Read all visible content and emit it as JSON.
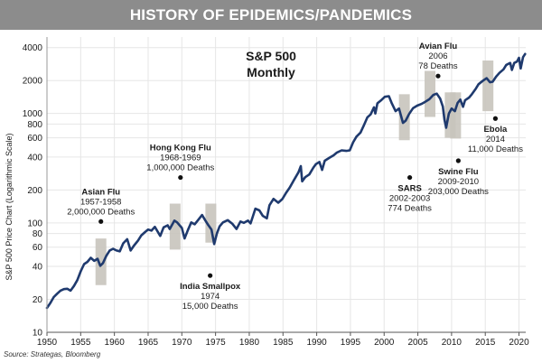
{
  "title": "HISTORY OF EPIDEMICS/PANDEMICS",
  "source": "Source: Strategas, Bloomberg",
  "colors": {
    "title_bg": "#8c8c8c",
    "line": "#1f3a6e",
    "bar": "#c8c4bc",
    "grid": "#e6e6e6"
  },
  "chart_data": {
    "type": "line",
    "title": "S&P 500",
    "subtitle": "Monthly",
    "ylabel": "S&P 500 Price Chart (Logarithmic Scale)",
    "xlabel": "",
    "log_y": true,
    "xlim": [
      1950,
      2021
    ],
    "ylim": [
      10,
      5000
    ],
    "grid": true,
    "x_ticks": [
      "1950",
      "1955",
      "1960",
      "1965",
      "1970",
      "1975",
      "1980",
      "1985",
      "1990",
      "1995",
      "2000",
      "2005",
      "2010",
      "2015",
      "2020"
    ],
    "y_ticks": [
      "10",
      "20",
      "40",
      "60",
      "80",
      "100",
      "200",
      "400",
      "600",
      "800",
      "1000",
      "2000",
      "4000"
    ],
    "series": [
      {
        "name": "",
        "points": [
          [
            1950.0,
            16.7
          ],
          [
            1950.5,
            18.5
          ],
          [
            1951.0,
            21.0
          ],
          [
            1951.5,
            22.5
          ],
          [
            1952.0,
            24.0
          ],
          [
            1952.5,
            24.8
          ],
          [
            1953.0,
            25.0
          ],
          [
            1953.5,
            24.0
          ],
          [
            1954.0,
            26.5
          ],
          [
            1954.5,
            30.0
          ],
          [
            1955.0,
            36.0
          ],
          [
            1955.5,
            42.0
          ],
          [
            1956.0,
            44.0
          ],
          [
            1956.5,
            48.0
          ],
          [
            1957.0,
            45.0
          ],
          [
            1957.5,
            47.0
          ],
          [
            1957.9,
            40.5
          ],
          [
            1958.3,
            43.0
          ],
          [
            1958.8,
            50.0
          ],
          [
            1959.3,
            56.0
          ],
          [
            1959.8,
            58.0
          ],
          [
            1960.3,
            56.0
          ],
          [
            1960.8,
            55.0
          ],
          [
            1961.3,
            65.0
          ],
          [
            1961.9,
            71.0
          ],
          [
            1962.4,
            56.0
          ],
          [
            1962.9,
            62.0
          ],
          [
            1963.5,
            69.0
          ],
          [
            1964.0,
            77.0
          ],
          [
            1964.6,
            83.0
          ],
          [
            1965.0,
            87.0
          ],
          [
            1965.5,
            85.0
          ],
          [
            1966.0,
            92.0
          ],
          [
            1966.8,
            76.0
          ],
          [
            1967.3,
            91.0
          ],
          [
            1967.9,
            95.0
          ],
          [
            1968.2,
            88.0
          ],
          [
            1968.9,
            105.0
          ],
          [
            1969.3,
            101.0
          ],
          [
            1970.0,
            90.0
          ],
          [
            1970.4,
            72.0
          ],
          [
            1970.9,
            86.0
          ],
          [
            1971.4,
            101.0
          ],
          [
            1971.9,
            97.0
          ],
          [
            1972.5,
            108.0
          ],
          [
            1973.0,
            118.0
          ],
          [
            1973.5,
            105.0
          ],
          [
            1973.9,
            96.0
          ],
          [
            1974.4,
            87.0
          ],
          [
            1974.8,
            64.0
          ],
          [
            1975.2,
            80.0
          ],
          [
            1975.6,
            93.0
          ],
          [
            1976.1,
            101.0
          ],
          [
            1976.8,
            106.0
          ],
          [
            1977.5,
            98.0
          ],
          [
            1978.1,
            88.0
          ],
          [
            1978.7,
            103.0
          ],
          [
            1979.2,
            100.0
          ],
          [
            1979.8,
            105.0
          ],
          [
            1980.2,
            99.0
          ],
          [
            1980.9,
            135.0
          ],
          [
            1981.5,
            130.0
          ],
          [
            1982.0,
            116.0
          ],
          [
            1982.6,
            110.0
          ],
          [
            1983.0,
            145.0
          ],
          [
            1983.6,
            166.0
          ],
          [
            1984.3,
            153.0
          ],
          [
            1984.9,
            165.0
          ],
          [
            1985.5,
            190.0
          ],
          [
            1986.0,
            210.0
          ],
          [
            1986.6,
            245.0
          ],
          [
            1987.3,
            290.0
          ],
          [
            1987.65,
            330.0
          ],
          [
            1987.85,
            240.0
          ],
          [
            1988.3,
            262.0
          ],
          [
            1988.9,
            277.0
          ],
          [
            1989.5,
            320.0
          ],
          [
            1989.9,
            345.0
          ],
          [
            1990.4,
            360.0
          ],
          [
            1990.8,
            305.0
          ],
          [
            1991.2,
            370.0
          ],
          [
            1991.9,
            395.0
          ],
          [
            1992.5,
            415.0
          ],
          [
            1993.0,
            440.0
          ],
          [
            1993.7,
            460.0
          ],
          [
            1994.4,
            455.0
          ],
          [
            1994.9,
            460.0
          ],
          [
            1995.4,
            545.0
          ],
          [
            1995.9,
            615.0
          ],
          [
            1996.5,
            670.0
          ],
          [
            1997.0,
            780.0
          ],
          [
            1997.5,
            920.0
          ],
          [
            1998.0,
            980.0
          ],
          [
            1998.5,
            1140.0
          ],
          [
            1998.7,
            1000.0
          ],
          [
            1999.0,
            1240.0
          ],
          [
            1999.6,
            1330.0
          ],
          [
            2000.1,
            1420.0
          ],
          [
            2000.7,
            1440.0
          ],
          [
            2001.1,
            1250.0
          ],
          [
            2001.7,
            1050.0
          ],
          [
            2002.2,
            1110.0
          ],
          [
            2002.8,
            820.0
          ],
          [
            2003.2,
            860.0
          ],
          [
            2003.7,
            990.0
          ],
          [
            2004.3,
            1120.0
          ],
          [
            2004.9,
            1180.0
          ],
          [
            2005.5,
            1220.0
          ],
          [
            2006.1,
            1280.0
          ],
          [
            2006.7,
            1350.0
          ],
          [
            2007.3,
            1480.0
          ],
          [
            2007.8,
            1520.0
          ],
          [
            2008.3,
            1370.0
          ],
          [
            2008.7,
            1160.0
          ],
          [
            2008.95,
            880.0
          ],
          [
            2009.2,
            740.0
          ],
          [
            2009.6,
            1000.0
          ],
          [
            2010.0,
            1110.0
          ],
          [
            2010.5,
            1050.0
          ],
          [
            2010.9,
            1250.0
          ],
          [
            2011.3,
            1340.0
          ],
          [
            2011.7,
            1150.0
          ],
          [
            2012.0,
            1320.0
          ],
          [
            2012.6,
            1400.0
          ],
          [
            2013.0,
            1500.0
          ],
          [
            2013.6,
            1690.0
          ],
          [
            2014.0,
            1850.0
          ],
          [
            2014.6,
            1980.0
          ],
          [
            2015.2,
            2100.0
          ],
          [
            2015.7,
            1930.0
          ],
          [
            2016.1,
            1950.0
          ],
          [
            2016.6,
            2170.0
          ],
          [
            2017.1,
            2350.0
          ],
          [
            2017.7,
            2530.0
          ],
          [
            2018.1,
            2780.0
          ],
          [
            2018.7,
            2900.0
          ],
          [
            2018.95,
            2500.0
          ],
          [
            2019.3,
            2900.0
          ],
          [
            2019.7,
            2980.0
          ],
          [
            2020.0,
            3230.0
          ],
          [
            2020.25,
            2580.0
          ],
          [
            2020.6,
            3270.0
          ],
          [
            2020.9,
            3500.0
          ]
        ]
      }
    ],
    "bars": [
      {
        "x": 1958.0,
        "low": 27,
        "high": 72
      },
      {
        "x": 1969.0,
        "low": 57,
        "high": 150
      },
      {
        "x": 1974.3,
        "low": 66,
        "high": 150
      },
      {
        "x": 2003.0,
        "low": 570,
        "high": 1500
      },
      {
        "x": 2006.8,
        "low": 930,
        "high": 2450
      },
      {
        "x": 2009.8,
        "low": 600,
        "high": 1560
      },
      {
        "x": 2010.6,
        "low": 590,
        "high": 1560
      },
      {
        "x": 2015.4,
        "low": 1050,
        "high": 3050
      }
    ],
    "annotations": [
      {
        "lines": [
          "Asian Flu",
          "1957-1958",
          "2,000,000 Deaths"
        ],
        "x": 1958.0,
        "y": 103,
        "anchor": "above"
      },
      {
        "lines": [
          "Hong Kong Flu",
          "1968-1969",
          "1,000,000 Deaths"
        ],
        "x": 1969.8,
        "y": 260,
        "anchor": "above"
      },
      {
        "lines": [
          "India Smallpox",
          "1974",
          "15,000 Deaths"
        ],
        "x": 1974.2,
        "y": 33,
        "anchor": "below"
      },
      {
        "lines": [
          "SARS",
          "2002-2003",
          "774 Deaths"
        ],
        "x": 2003.8,
        "y": 260,
        "anchor": "below"
      },
      {
        "lines": [
          "Avian Flu",
          "2006",
          "78 Deaths"
        ],
        "x": 2008.0,
        "y": 2200,
        "anchor": "above"
      },
      {
        "lines": [
          "Swine Flu",
          "2009-2010",
          "203,000 Deaths"
        ],
        "x": 2011.0,
        "y": 370,
        "anchor": "below"
      },
      {
        "lines": [
          "Ebola",
          "2014",
          "11,000 Deaths"
        ],
        "x": 2016.5,
        "y": 900,
        "anchor": "below"
      }
    ]
  }
}
